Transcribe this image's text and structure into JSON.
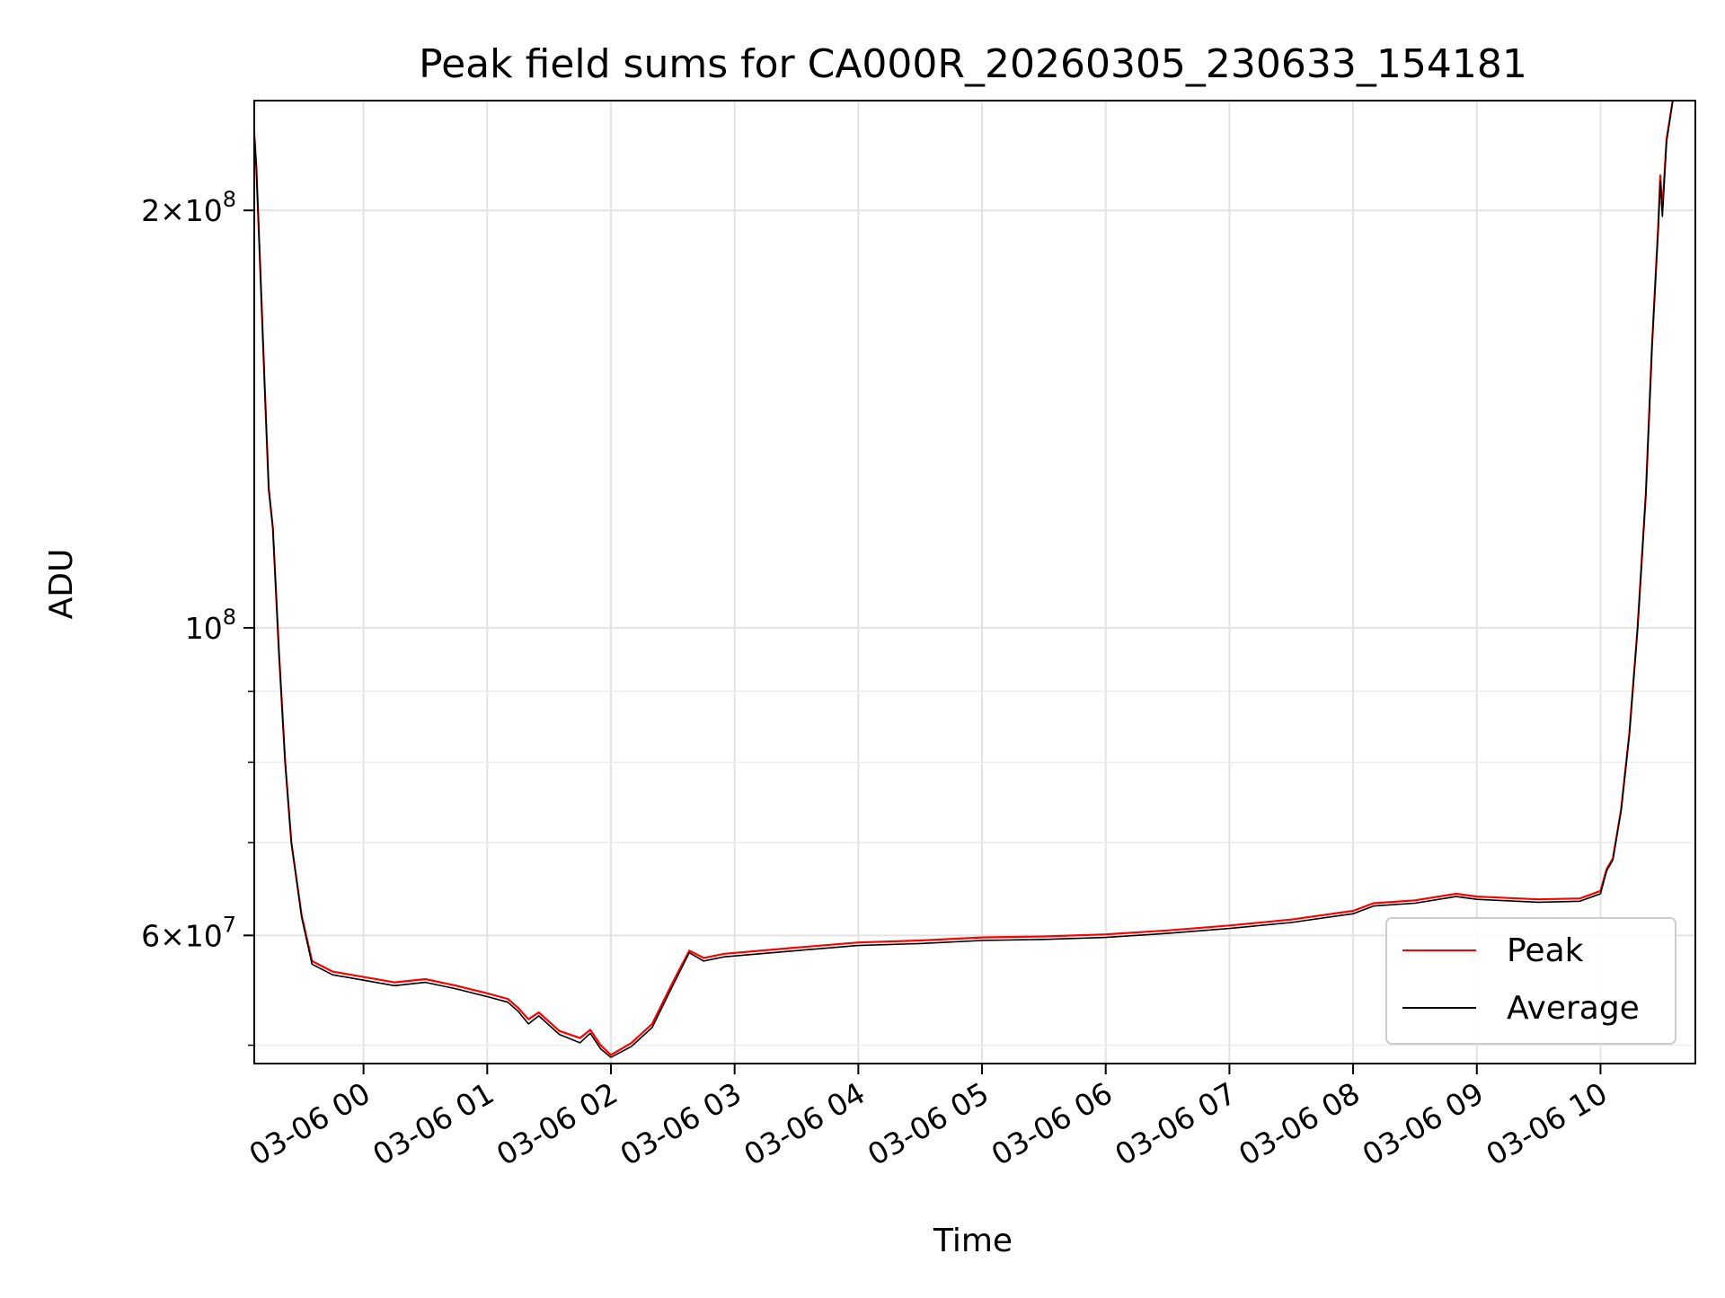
{
  "chart_data": {
    "type": "line",
    "title": "Peak field sums for CA000R_20260305_230633_154181",
    "xlabel": "Time",
    "ylabel": "ADU",
    "yscale": "log",
    "grid": true,
    "legend_position": "lower-right",
    "xlim": [
      "2026-03-05 23:07",
      "2026-03-06 10:46"
    ],
    "ylim": [
      48500000,
      240000000
    ],
    "x_ticks": [
      {
        "value": "2026-03-06 00:00",
        "label": "03-06 00"
      },
      {
        "value": "2026-03-06 01:00",
        "label": "03-06 01"
      },
      {
        "value": "2026-03-06 02:00",
        "label": "03-06 02"
      },
      {
        "value": "2026-03-06 03:00",
        "label": "03-06 03"
      },
      {
        "value": "2026-03-06 04:00",
        "label": "03-06 04"
      },
      {
        "value": "2026-03-06 05:00",
        "label": "03-06 05"
      },
      {
        "value": "2026-03-06 06:00",
        "label": "03-06 06"
      },
      {
        "value": "2026-03-06 07:00",
        "label": "03-06 07"
      },
      {
        "value": "2026-03-06 08:00",
        "label": "03-06 08"
      },
      {
        "value": "2026-03-06 09:00",
        "label": "03-06 09"
      },
      {
        "value": "2026-03-06 10:00",
        "label": "03-06 10"
      }
    ],
    "y_ticks": [
      {
        "value": 200000000,
        "base": "2",
        "exp": "8"
      },
      {
        "value": 100000000,
        "base": "",
        "exp": "8"
      },
      {
        "value": 60000000,
        "base": "6",
        "exp": "7"
      }
    ],
    "y_minor_ticks": [
      50000000,
      70000000,
      80000000,
      90000000
    ],
    "series": [
      {
        "name": "Peak",
        "color": "#ff0000",
        "points": [
          [
            "2026-03-05 23:06",
            240000000
          ],
          [
            "2026-03-05 23:08",
            215000000
          ],
          [
            "2026-03-05 23:10",
            180000000
          ],
          [
            "2026-03-05 23:12",
            150000000
          ],
          [
            "2026-03-05 23:14",
            126000000
          ],
          [
            "2026-03-05 23:16",
            118000000
          ],
          [
            "2026-03-05 23:19",
            96000000
          ],
          [
            "2026-03-05 23:22",
            80000000
          ],
          [
            "2026-03-05 23:25",
            70000000
          ],
          [
            "2026-03-05 23:30",
            62000000
          ],
          [
            "2026-03-05 23:35",
            57500000
          ],
          [
            "2026-03-05 23:45",
            56500000
          ],
          [
            "2026-03-06 00:00",
            56000000
          ],
          [
            "2026-03-06 00:15",
            55500000
          ],
          [
            "2026-03-06 00:30",
            55800000
          ],
          [
            "2026-03-06 00:45",
            55200000
          ],
          [
            "2026-03-06 01:00",
            54500000
          ],
          [
            "2026-03-06 01:10",
            54000000
          ],
          [
            "2026-03-06 01:15",
            53200000
          ],
          [
            "2026-03-06 01:20",
            52200000
          ],
          [
            "2026-03-06 01:25",
            52800000
          ],
          [
            "2026-03-06 01:35",
            51200000
          ],
          [
            "2026-03-06 01:45",
            50600000
          ],
          [
            "2026-03-06 01:50",
            51300000
          ],
          [
            "2026-03-06 01:55",
            50000000
          ],
          [
            "2026-03-06 02:00",
            49200000
          ],
          [
            "2026-03-06 02:10",
            50200000
          ],
          [
            "2026-03-06 02:20",
            51800000
          ],
          [
            "2026-03-06 02:30",
            55500000
          ],
          [
            "2026-03-06 02:38",
            58500000
          ],
          [
            "2026-03-06 02:45",
            57800000
          ],
          [
            "2026-03-06 02:55",
            58200000
          ],
          [
            "2026-03-06 03:30",
            58800000
          ],
          [
            "2026-03-06 04:00",
            59300000
          ],
          [
            "2026-03-06 04:30",
            59500000
          ],
          [
            "2026-03-06 05:00",
            59800000
          ],
          [
            "2026-03-06 05:30",
            59900000
          ],
          [
            "2026-03-06 06:00",
            60100000
          ],
          [
            "2026-03-06 06:30",
            60500000
          ],
          [
            "2026-03-06 07:00",
            61000000
          ],
          [
            "2026-03-06 07:30",
            61600000
          ],
          [
            "2026-03-06 08:00",
            62500000
          ],
          [
            "2026-03-06 08:10",
            63300000
          ],
          [
            "2026-03-06 08:30",
            63600000
          ],
          [
            "2026-03-06 08:50",
            64300000
          ],
          [
            "2026-03-06 09:00",
            64000000
          ],
          [
            "2026-03-06 09:30",
            63700000
          ],
          [
            "2026-03-06 09:50",
            63800000
          ],
          [
            "2026-03-06 10:00",
            64600000
          ],
          [
            "2026-03-06 10:03",
            67000000
          ],
          [
            "2026-03-06 10:06",
            68200000
          ],
          [
            "2026-03-06 10:10",
            74000000
          ],
          [
            "2026-03-06 10:14",
            84000000
          ],
          [
            "2026-03-06 10:18",
            100000000
          ],
          [
            "2026-03-06 10:22",
            125000000
          ],
          [
            "2026-03-06 10:25",
            160000000
          ],
          [
            "2026-03-06 10:28",
            195000000
          ],
          [
            "2026-03-06 10:29",
            212000000
          ],
          [
            "2026-03-06 10:30",
            200000000
          ],
          [
            "2026-03-06 10:32",
            225000000
          ],
          [
            "2026-03-06 10:35",
            240000000
          ]
        ]
      },
      {
        "name": "Average",
        "color": "#000000",
        "points": [
          [
            "2026-03-05 23:06",
            240000000
          ],
          [
            "2026-03-05 23:08",
            215000000
          ],
          [
            "2026-03-05 23:10",
            180000000
          ],
          [
            "2026-03-05 23:12",
            150000000
          ],
          [
            "2026-03-05 23:14",
            126000000
          ],
          [
            "2026-03-05 23:16",
            118000000
          ],
          [
            "2026-03-05 23:19",
            96000000
          ],
          [
            "2026-03-05 23:22",
            80000000
          ],
          [
            "2026-03-05 23:25",
            70000000
          ],
          [
            "2026-03-05 23:30",
            61800000
          ],
          [
            "2026-03-05 23:35",
            57200000
          ],
          [
            "2026-03-05 23:45",
            56200000
          ],
          [
            "2026-03-06 00:00",
            55700000
          ],
          [
            "2026-03-06 00:15",
            55200000
          ],
          [
            "2026-03-06 00:30",
            55500000
          ],
          [
            "2026-03-06 00:45",
            54900000
          ],
          [
            "2026-03-06 01:00",
            54200000
          ],
          [
            "2026-03-06 01:10",
            53700000
          ],
          [
            "2026-03-06 01:15",
            52900000
          ],
          [
            "2026-03-06 01:20",
            51800000
          ],
          [
            "2026-03-06 01:25",
            52500000
          ],
          [
            "2026-03-06 01:35",
            50900000
          ],
          [
            "2026-03-06 01:45",
            50200000
          ],
          [
            "2026-03-06 01:50",
            51000000
          ],
          [
            "2026-03-06 01:55",
            49700000
          ],
          [
            "2026-03-06 02:00",
            49000000
          ],
          [
            "2026-03-06 02:10",
            49900000
          ],
          [
            "2026-03-06 02:20",
            51500000
          ],
          [
            "2026-03-06 02:30",
            55200000
          ],
          [
            "2026-03-06 02:38",
            58300000
          ],
          [
            "2026-03-06 02:45",
            57500000
          ],
          [
            "2026-03-06 02:55",
            57900000
          ],
          [
            "2026-03-06 03:30",
            58500000
          ],
          [
            "2026-03-06 04:00",
            59000000
          ],
          [
            "2026-03-06 04:30",
            59200000
          ],
          [
            "2026-03-06 05:00",
            59500000
          ],
          [
            "2026-03-06 05:30",
            59600000
          ],
          [
            "2026-03-06 06:00",
            59800000
          ],
          [
            "2026-03-06 06:30",
            60200000
          ],
          [
            "2026-03-06 07:00",
            60700000
          ],
          [
            "2026-03-06 07:30",
            61300000
          ],
          [
            "2026-03-06 08:00",
            62200000
          ],
          [
            "2026-03-06 08:10",
            63000000
          ],
          [
            "2026-03-06 08:30",
            63300000
          ],
          [
            "2026-03-06 08:50",
            64000000
          ],
          [
            "2026-03-06 09:00",
            63700000
          ],
          [
            "2026-03-06 09:30",
            63400000
          ],
          [
            "2026-03-06 09:50",
            63500000
          ],
          [
            "2026-03-06 10:00",
            64300000
          ],
          [
            "2026-03-06 10:03",
            66800000
          ],
          [
            "2026-03-06 10:06",
            68000000
          ],
          [
            "2026-03-06 10:10",
            73800000
          ],
          [
            "2026-03-06 10:14",
            83800000
          ],
          [
            "2026-03-06 10:18",
            99800000
          ],
          [
            "2026-03-06 10:22",
            124800000
          ],
          [
            "2026-03-06 10:25",
            159800000
          ],
          [
            "2026-03-06 10:28",
            194000000
          ],
          [
            "2026-03-06 10:29",
            210000000
          ],
          [
            "2026-03-06 10:30",
            198000000
          ],
          [
            "2026-03-06 10:32",
            224000000
          ],
          [
            "2026-03-06 10:35",
            240000000
          ]
        ]
      }
    ]
  }
}
